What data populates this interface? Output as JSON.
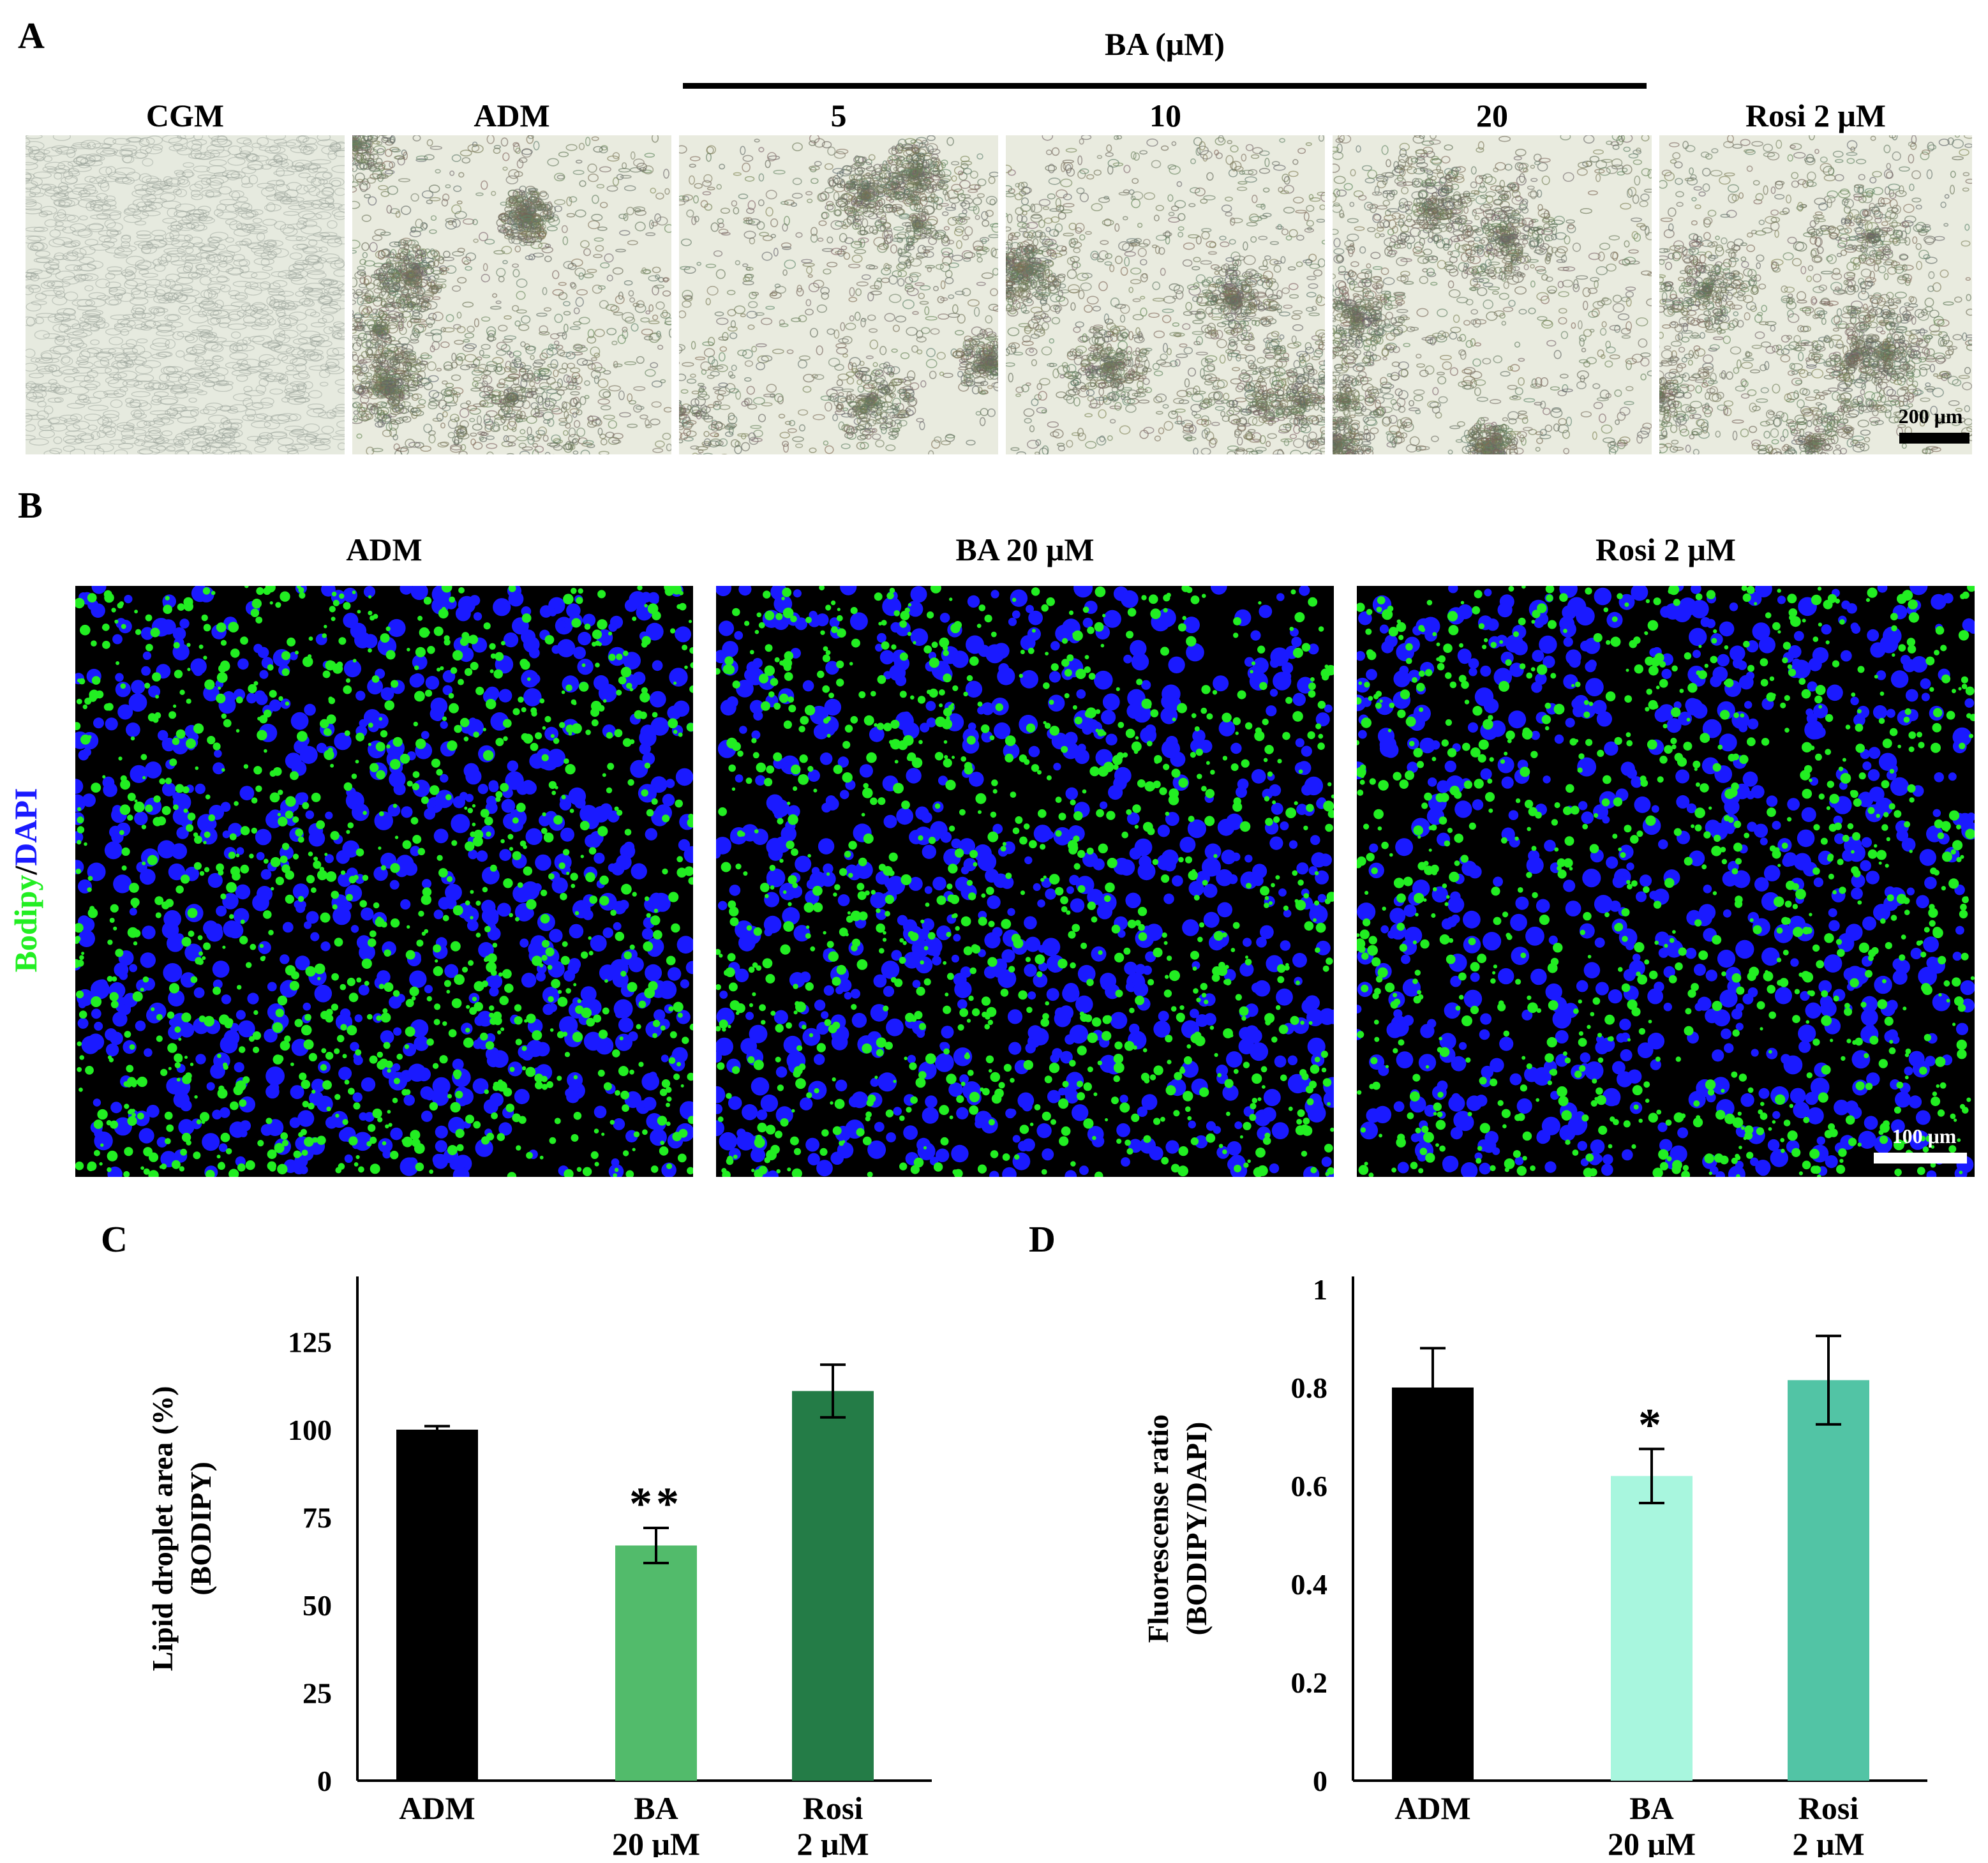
{
  "panel_a": {
    "label": "A",
    "group_label": "BA (μM)",
    "columns": [
      "CGM",
      "ADM",
      "5",
      "10",
      "20",
      "Rosi 2 μM"
    ],
    "scale_bar": "200 μm"
  },
  "panel_b": {
    "label": "B",
    "columns": [
      "ADM",
      "BA 20 μM",
      "Rosi 2 μM"
    ],
    "stain_label_green": "Bodipy",
    "stain_label_sep": "/",
    "stain_label_blue": "DAPI",
    "scale_bar": "100 μm",
    "colors": {
      "green": "#22ee22",
      "blue": "#1a1aff"
    }
  },
  "chart_data": [
    {
      "panel_label": "C",
      "type": "bar",
      "categories": [
        [
          "ADM"
        ],
        [
          "BA",
          "20 μM"
        ],
        [
          "Rosi",
          "2 μM"
        ]
      ],
      "values": [
        100,
        67,
        111
      ],
      "errors": [
        1,
        5,
        7.5
      ],
      "significance": [
        "",
        "**",
        ""
      ],
      "colors": [
        "#000000",
        "#52bb6b",
        "#247c47"
      ],
      "ylabel_lines": [
        "Lipid droplet area (%)",
        "(BODIPY)"
      ],
      "yticks": [
        "0",
        "25",
        "50",
        "75",
        "100",
        "125"
      ],
      "ylim": [
        0,
        140
      ]
    },
    {
      "panel_label": "D",
      "type": "bar",
      "categories": [
        [
          "ADM"
        ],
        [
          "BA",
          "20 μM"
        ],
        [
          "Rosi",
          "2 μM"
        ]
      ],
      "values": [
        0.8,
        0.62,
        0.815
      ],
      "errors": [
        0.08,
        0.055,
        0.09
      ],
      "significance": [
        "",
        "*",
        ""
      ],
      "colors": [
        "#000000",
        "#a8f6de",
        "#52c4a5"
      ],
      "ylabel_lines": [
        "Fluorescense ratio",
        "(BODIPY/DAPI)"
      ],
      "yticks": [
        "0",
        "0.2",
        "0.4",
        "0.6",
        "0.8",
        "1"
      ],
      "ylim": [
        0,
        1
      ]
    }
  ]
}
